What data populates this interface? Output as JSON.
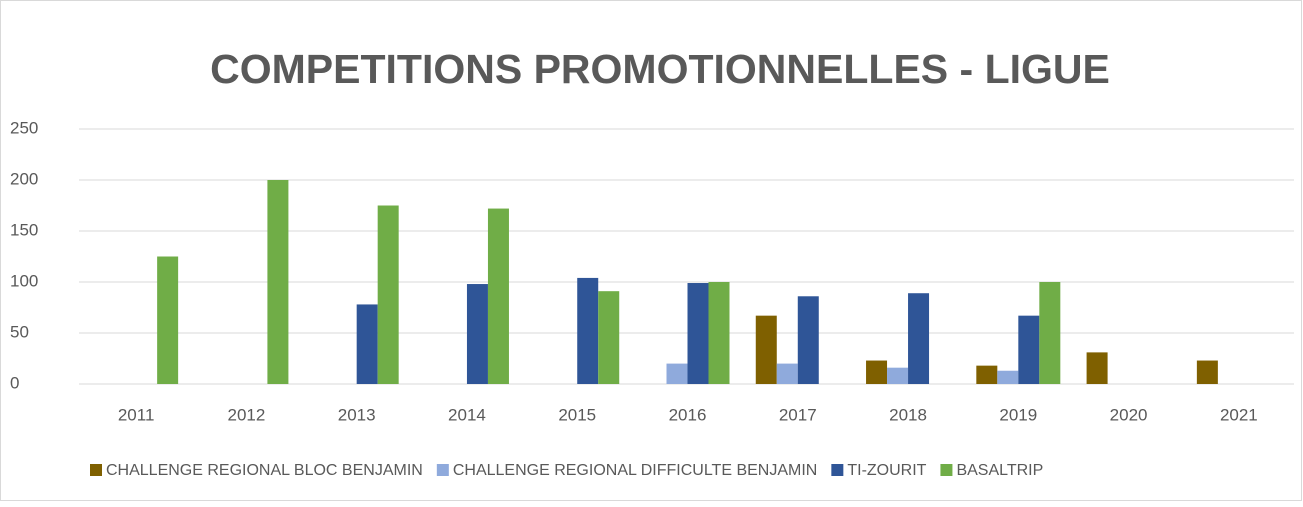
{
  "chart_data": {
    "type": "bar",
    "title": "COMPETITIONS PROMOTIONNELLES - LIGUE",
    "categories": [
      "2011",
      "2012",
      "2013",
      "2014",
      "2015",
      "2016",
      "2017",
      "2018",
      "2019",
      "2020",
      "2021"
    ],
    "series": [
      {
        "name": "CHALLENGE REGIONAL BLOC BENJAMIN",
        "color": "#7f6000",
        "values": [
          null,
          null,
          null,
          null,
          null,
          null,
          67,
          23,
          18,
          31,
          23
        ]
      },
      {
        "name": "CHALLENGE REGIONAL DIFFICULTE BENJAMIN",
        "color": "#8faadc",
        "values": [
          null,
          null,
          null,
          null,
          null,
          20,
          20,
          16,
          13,
          null,
          null
        ]
      },
      {
        "name": "TI-ZOURIT",
        "color": "#2f5597",
        "values": [
          null,
          null,
          78,
          98,
          104,
          99,
          86,
          89,
          67,
          null,
          null
        ]
      },
      {
        "name": "BASALTRIP",
        "color": "#70ad47",
        "values": [
          125,
          200,
          175,
          172,
          91,
          100,
          null,
          null,
          100,
          null,
          null
        ]
      }
    ],
    "ylim": [
      0,
      250
    ],
    "yticks": [
      0,
      50,
      100,
      150,
      200,
      250
    ],
    "grid": true,
    "legend": "bottom"
  }
}
